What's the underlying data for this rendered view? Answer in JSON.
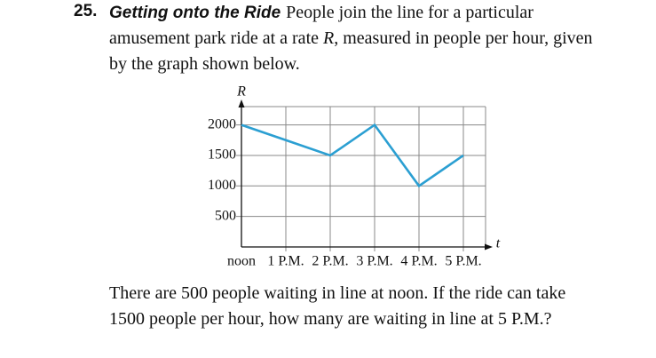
{
  "problem": {
    "number": "25.",
    "title": "Getting onto the Ride",
    "statement": [
      "People join the line for a particular amusement park ride at a rate ",
      "R",
      ", measured in people per hour, given by the graph shown below."
    ],
    "question": "There are 500 people waiting in line at noon. If the ride can take 1500 people per hour, how many are waiting in line at 5 P.M.?"
  },
  "chart_data": {
    "type": "line",
    "x_label": "t",
    "y_label": "R",
    "x": [
      0,
      1,
      2,
      3,
      4,
      5
    ],
    "series": [
      {
        "color": "#2b9fd2",
        "values": [
          2000,
          1750,
          1500,
          2000,
          1000,
          1500
        ]
      }
    ],
    "xlim": [
      0,
      5.5
    ],
    "ylim": [
      0,
      2300
    ],
    "xticks": [
      {
        "value": 0,
        "label": "noon"
      },
      {
        "value": 1,
        "label": "1 P.M."
      },
      {
        "value": 2,
        "label": "2 P.M."
      },
      {
        "value": 3,
        "label": "3 P.M."
      },
      {
        "value": 4,
        "label": "4 P.M."
      },
      {
        "value": 5,
        "label": "5 P.M."
      }
    ],
    "yticks": [
      500,
      1000,
      1500,
      2000
    ],
    "grid": true
  }
}
